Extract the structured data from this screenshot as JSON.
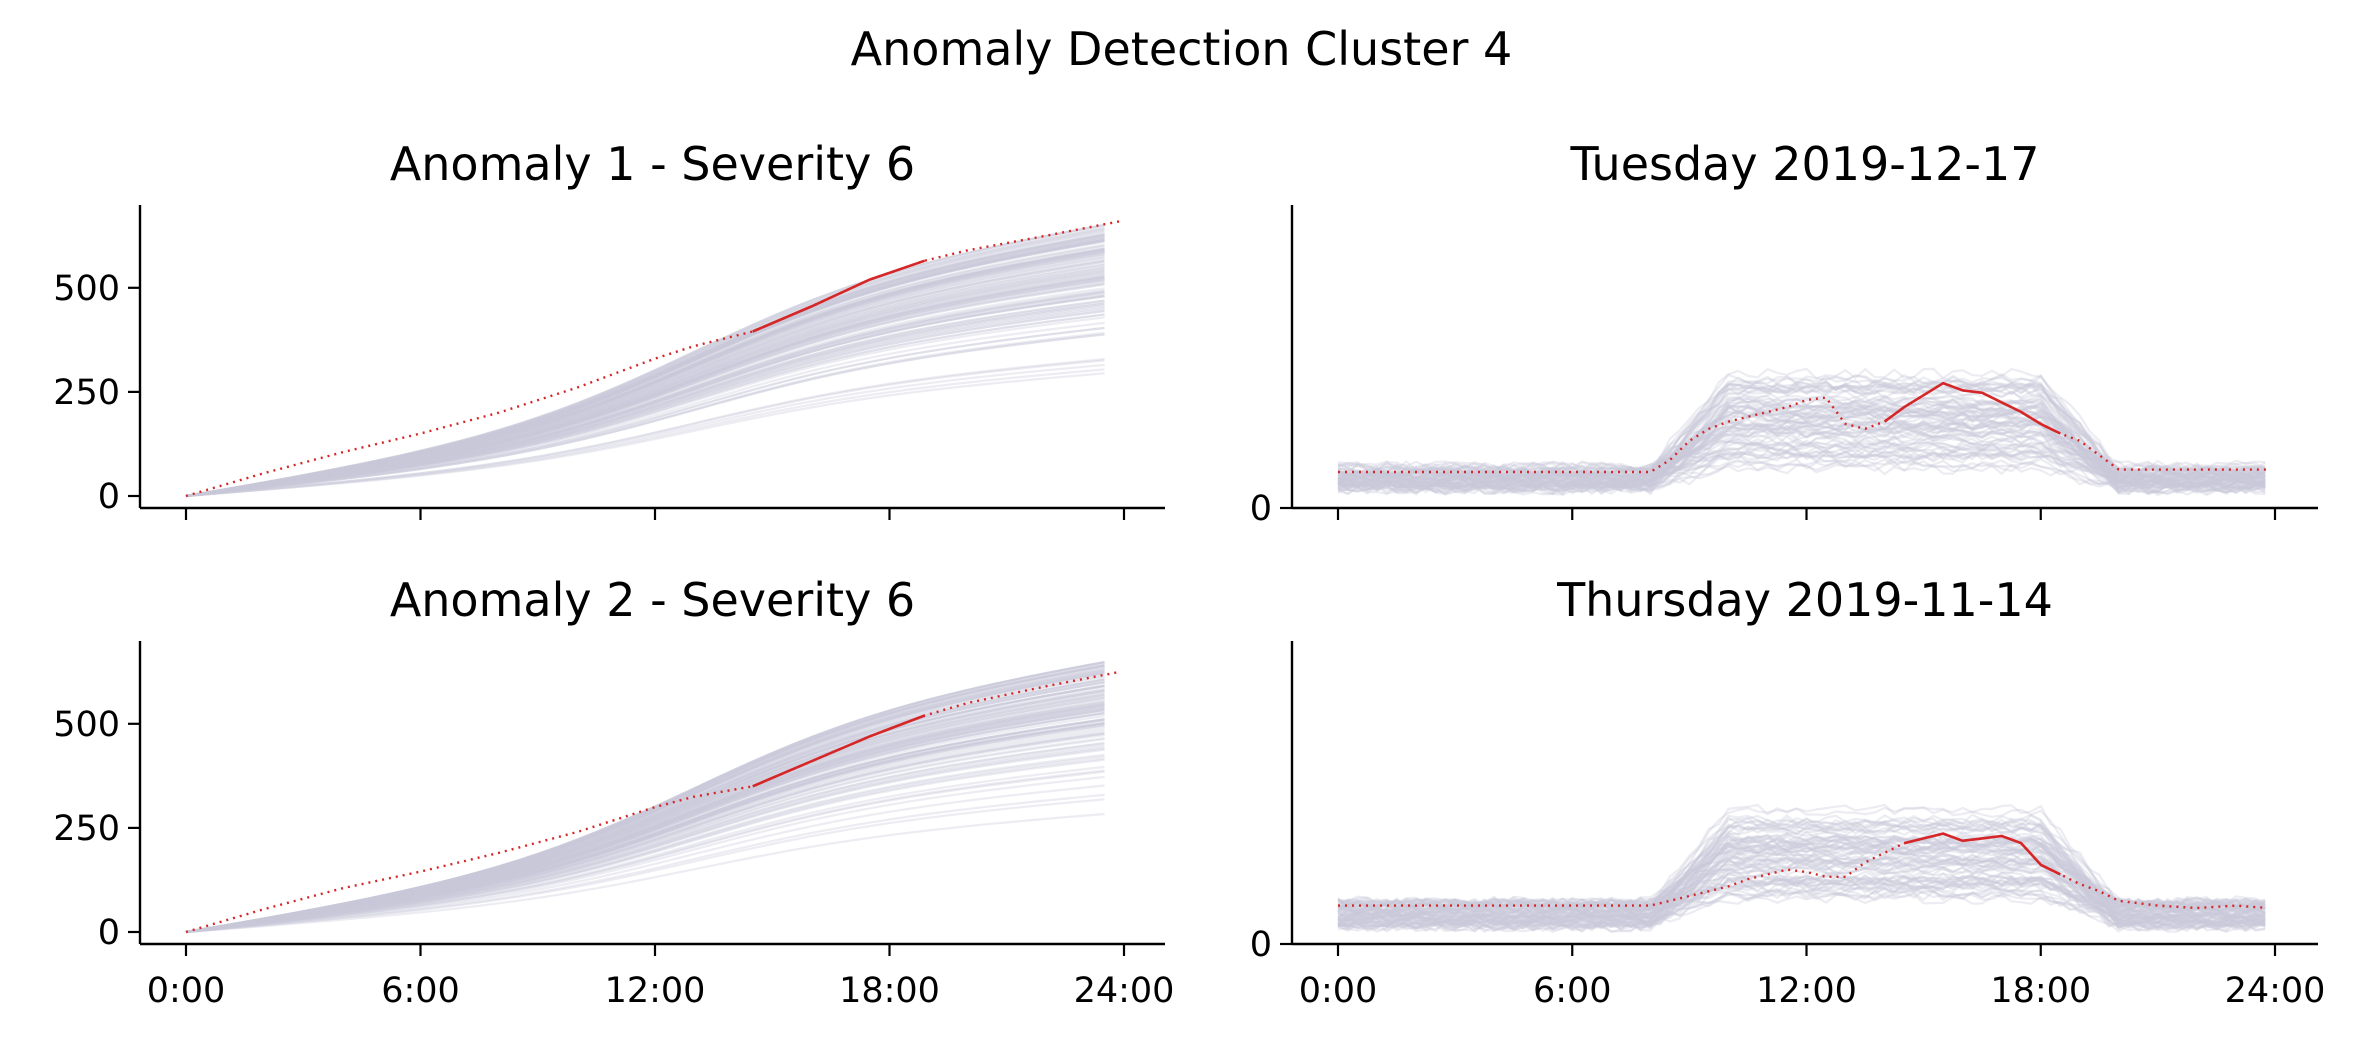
{
  "suptitle": "Anomaly Detection Cluster 4",
  "colors": {
    "anomaly": "#d62728",
    "background_series": "#c9c9d9",
    "axis": "#000000"
  },
  "chart_data": [
    {
      "type": "line",
      "title": "Anomaly 1 - Severity 6",
      "xlabel": "",
      "ylabel": "",
      "x_range_hours": [
        0,
        24
      ],
      "ylim": [
        0,
        700
      ],
      "yticks": [
        "0",
        "250",
        "500"
      ],
      "xticks": [
        "0:00",
        "6:00",
        "12:00",
        "18:00",
        "24:00"
      ],
      "show_xtick_labels": false,
      "grid": false,
      "background": {
        "description_kind": "cumulative",
        "count": 120,
        "end_min": 260,
        "end_max": 660
      },
      "anomaly_series": {
        "x": [
          0,
          2,
          4,
          6,
          8,
          10,
          12,
          13,
          14.5,
          16,
          17.5,
          18.9,
          20,
          22,
          23.9
        ],
        "y": [
          0,
          55,
          105,
          150,
          200,
          260,
          330,
          360,
          395,
          455,
          520,
          565,
          590,
          625,
          660
        ],
        "solid_from": 14.5,
        "solid_to": 18.9
      }
    },
    {
      "type": "line",
      "title": "Tuesday 2019-12-17",
      "xlabel": "",
      "ylabel": "",
      "x_range_hours": [
        0,
        24
      ],
      "ylim": [
        0,
        70
      ],
      "yticks": [
        "0"
      ],
      "xticks": [
        "0:00",
        "6:00",
        "12:00",
        "18:00",
        "24:00"
      ],
      "show_xtick_labels": false,
      "grid": false,
      "background": {
        "description_kind": "daily",
        "count": 80,
        "base": 13,
        "peak": 38
      },
      "anomaly_series": {
        "x": [
          0,
          1,
          2,
          3,
          4,
          5,
          6,
          7,
          8,
          8.5,
          9,
          9.5,
          10,
          10.5,
          11,
          11.5,
          12,
          12.5,
          13,
          13.5,
          14,
          14.5,
          15,
          15.5,
          16,
          16.5,
          17,
          17.5,
          18,
          18.5,
          19,
          19.5,
          20,
          21,
          22,
          23,
          23.8
        ],
        "y": [
          15,
          15,
          15,
          15,
          15,
          15,
          15,
          15,
          15,
          20,
          28,
          33,
          36,
          38,
          40,
          42,
          45,
          46,
          35,
          33,
          36,
          42,
          47,
          52,
          49,
          48,
          44,
          40,
          35,
          31,
          28,
          22,
          16,
          16,
          16,
          16,
          16
        ],
        "solid_from": 14,
        "solid_to": 18.9
      }
    },
    {
      "type": "line",
      "title": "Anomaly 2 - Severity 6",
      "xlabel": "",
      "ylabel": "",
      "x_range_hours": [
        0,
        24
      ],
      "ylim": [
        0,
        700
      ],
      "yticks": [
        "0",
        "250",
        "500"
      ],
      "xticks": [
        "0:00",
        "6:00",
        "12:00",
        "18:00",
        "24:00"
      ],
      "show_xtick_labels": true,
      "grid": false,
      "background": {
        "description_kind": "cumulative",
        "count": 120,
        "end_min": 260,
        "end_max": 660
      },
      "anomaly_series": {
        "x": [
          0,
          2,
          4,
          6,
          8,
          10,
          12,
          13,
          14.5,
          16,
          17.5,
          18.9,
          20,
          22,
          23.9
        ],
        "y": [
          0,
          55,
          105,
          145,
          190,
          240,
          300,
          325,
          350,
          410,
          470,
          520,
          550,
          590,
          625
        ],
        "solid_from": 14.5,
        "solid_to": 18.9
      }
    },
    {
      "type": "line",
      "title": "Thursday 2019-11-14",
      "xlabel": "",
      "ylabel": "",
      "x_range_hours": [
        0,
        24
      ],
      "ylim": [
        0,
        70
      ],
      "yticks": [
        "0"
      ],
      "xticks": [
        "0:00",
        "6:00",
        "12:00",
        "18:00",
        "24:00"
      ],
      "show_xtick_labels": true,
      "grid": false,
      "background": {
        "description_kind": "daily",
        "count": 80,
        "base": 13,
        "peak": 38
      },
      "anomaly_series": {
        "x": [
          0,
          1,
          2,
          3,
          4,
          5,
          6,
          7,
          8,
          8.5,
          9,
          9.5,
          10,
          10.5,
          11,
          11.5,
          12,
          12.5,
          13,
          13.5,
          14,
          14.5,
          15,
          15.5,
          16,
          16.5,
          17,
          17.5,
          18,
          18.5,
          19,
          19.5,
          20,
          21,
          22,
          23,
          23.8
        ],
        "y": [
          16,
          16,
          16,
          16,
          16,
          16,
          16,
          16,
          16,
          18,
          20,
          22,
          24,
          27,
          29,
          31,
          30,
          28,
          28,
          34,
          38,
          42,
          44,
          46,
          43,
          44,
          45,
          42,
          33,
          29,
          25,
          22,
          18,
          16,
          15,
          16,
          15
        ],
        "solid_from": 14.5,
        "solid_to": 18.9
      }
    }
  ]
}
